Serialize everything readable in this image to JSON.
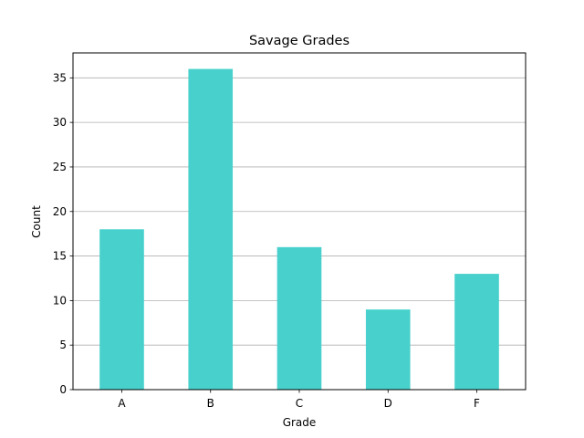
{
  "chart_data": {
    "type": "bar",
    "title": "Savage Grades",
    "xlabel": "Grade",
    "ylabel": "Count",
    "categories": [
      "A",
      "B",
      "C",
      "D",
      "F"
    ],
    "values": [
      18,
      36,
      16,
      9,
      13
    ],
    "ylim": [
      0,
      37.8
    ],
    "yticks": [
      0,
      5,
      10,
      15,
      20,
      25,
      30,
      35
    ],
    "grid": "y",
    "bar_color": "#48d1cc",
    "grid_color": "#b0b0b0"
  }
}
